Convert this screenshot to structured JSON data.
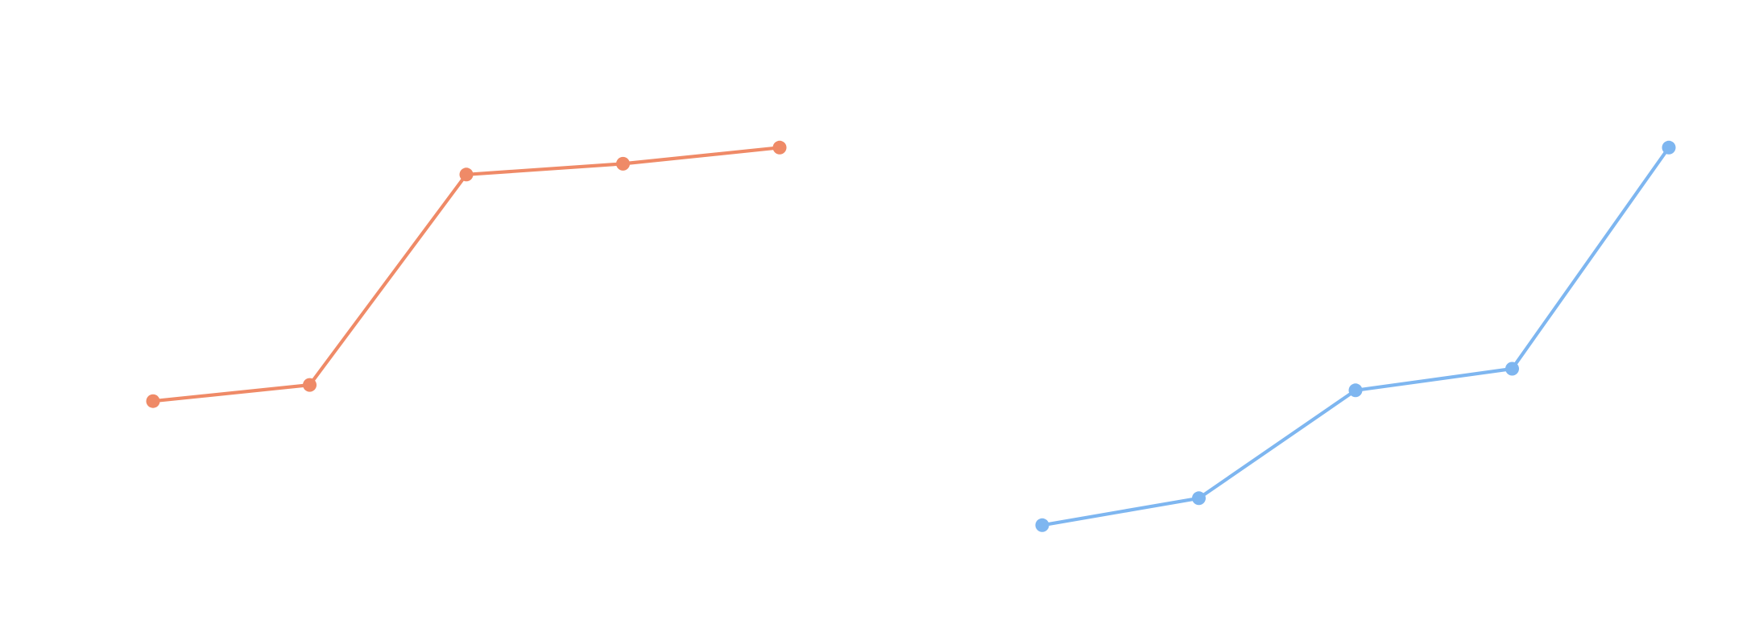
{
  "chart_data": [
    {
      "type": "line",
      "categories": [
        null,
        null,
        null,
        null,
        null
      ],
      "ylim": [
        0,
        100
      ],
      "series": [
        {
          "color": "#ef8a67",
          "values": [
            34,
            37,
            76,
            78,
            81
          ]
        }
      ]
    },
    {
      "type": "line",
      "categories": [
        null,
        null,
        null,
        null,
        null
      ],
      "ylim": [
        0,
        100
      ],
      "series": [
        {
          "color": "#7eb6f0",
          "values": [
            11,
            16,
            36,
            40,
            81
          ]
        }
      ]
    }
  ]
}
